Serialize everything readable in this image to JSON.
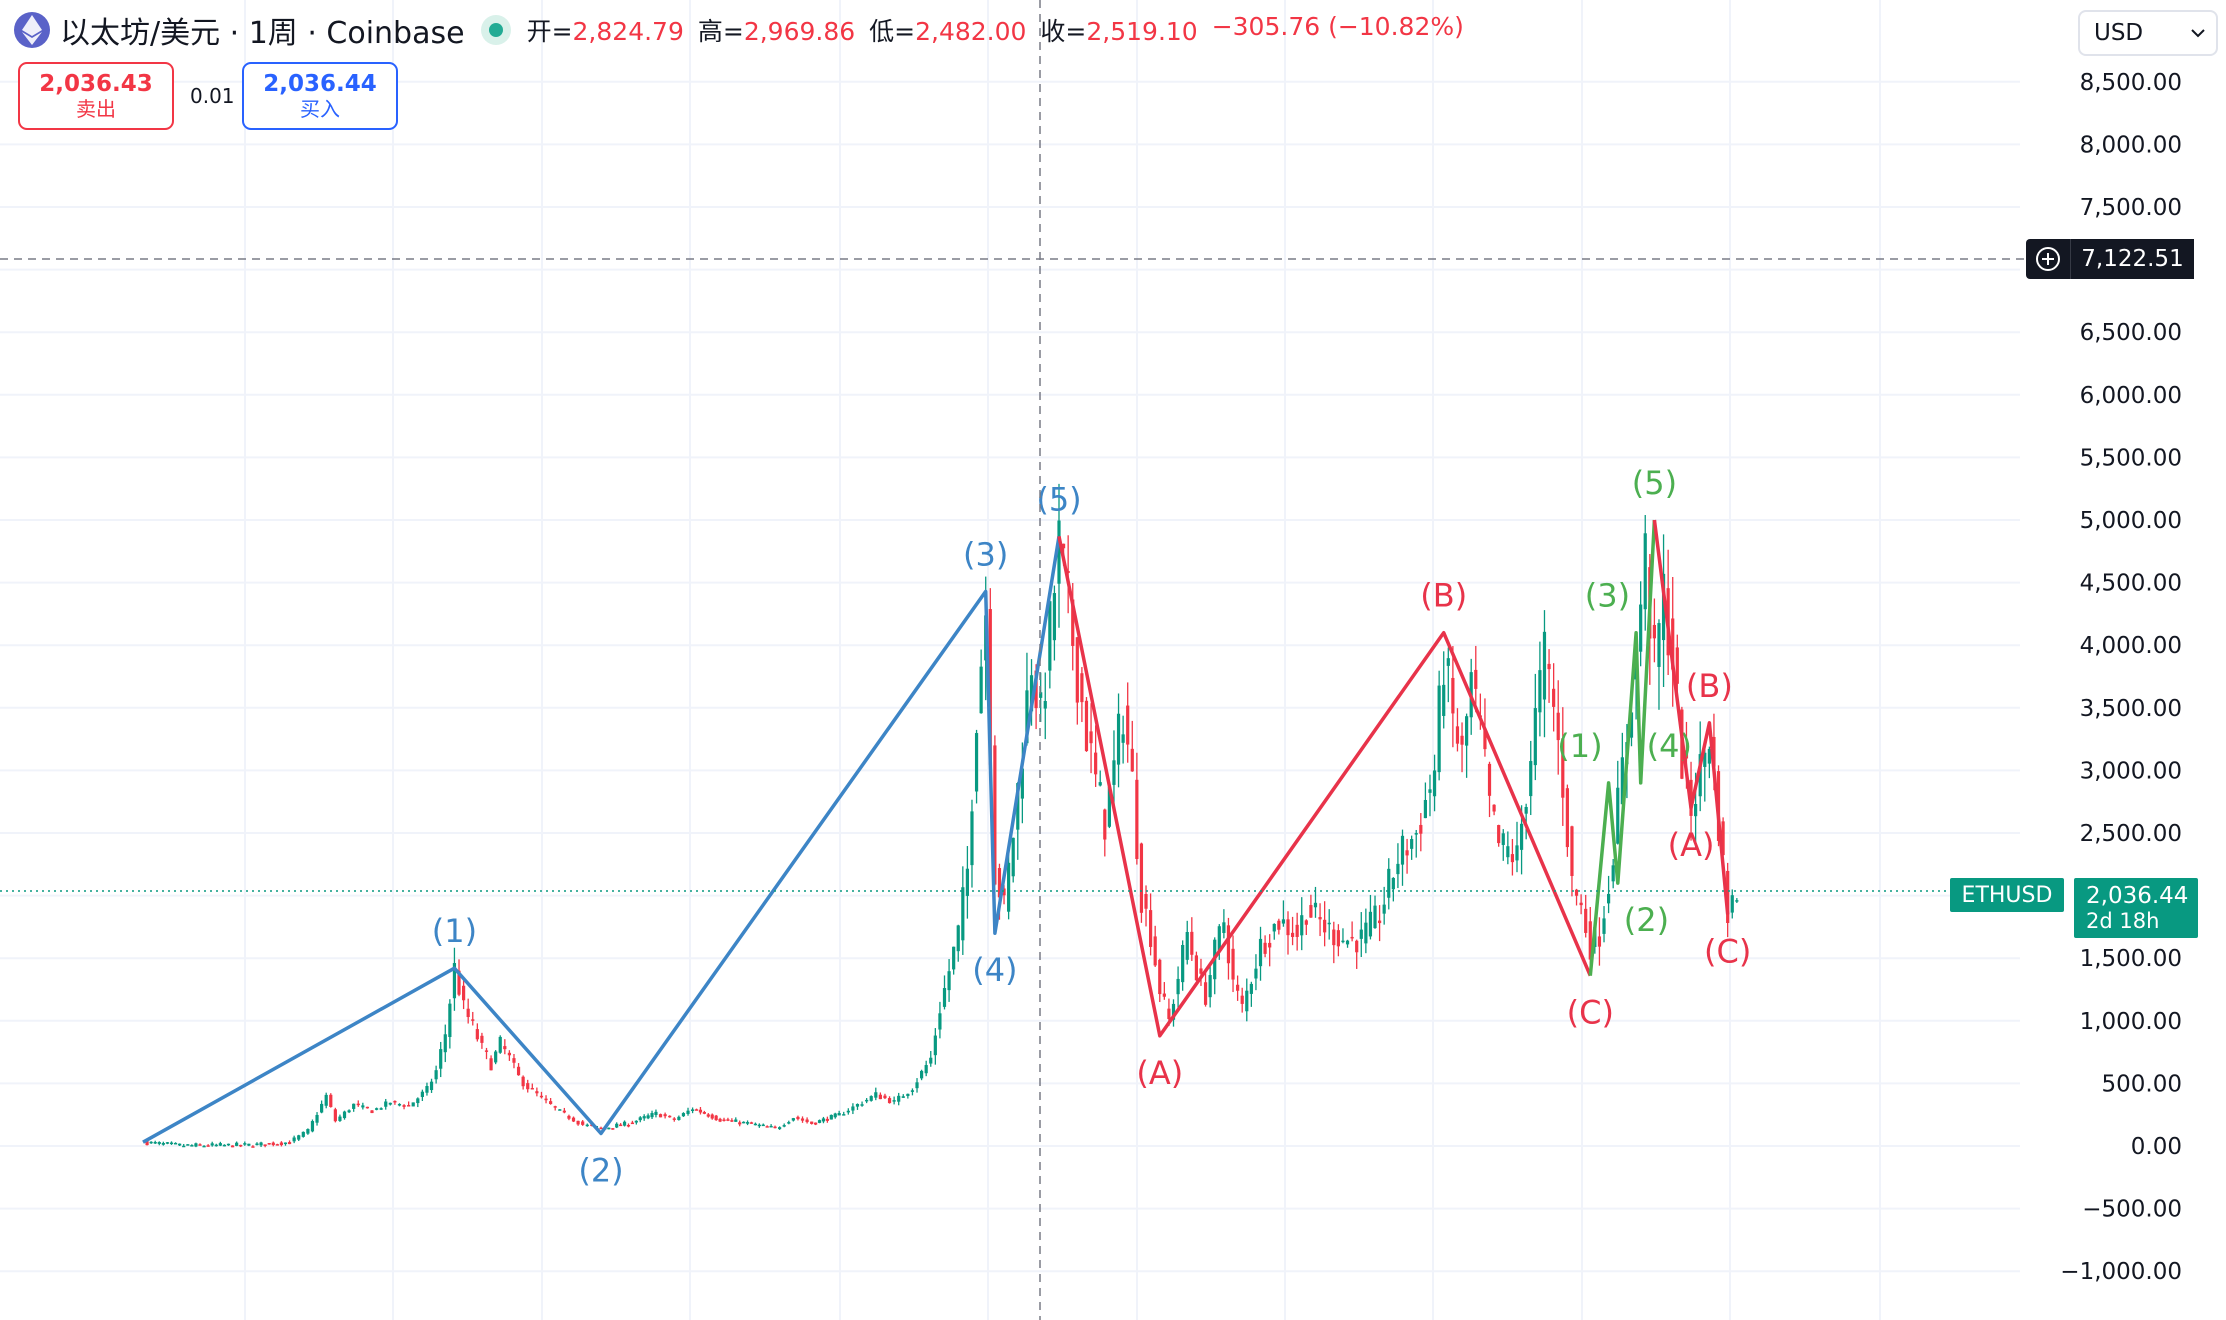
{
  "header": {
    "title": "以太坊/美元 · 1周 · Coinbase",
    "ohlc": {
      "open_label": "开=",
      "open": "2,824.79",
      "high_label": "高=",
      "high": "2,969.86",
      "low_label": "低=",
      "low": "2,482.00",
      "close_label": "收=",
      "close": "2,519.10",
      "change": "−305.76 (−10.82%)"
    }
  },
  "trade": {
    "sell_price": "2,036.43",
    "sell_label": "卖出",
    "spread": "0.01",
    "buy_price": "2,036.44",
    "buy_label": "买入"
  },
  "currency": {
    "selected": "USD"
  },
  "crosshair": {
    "price_label": "7,122.51"
  },
  "last_price": {
    "symbol": "ETHUSD",
    "price": "2,036.44",
    "countdown": "2d 18h"
  },
  "colors": {
    "up": "#089981",
    "down": "#f23645",
    "wave_blue": "#3d85c6",
    "wave_red": "#e8334a",
    "wave_green": "#4caf50",
    "accent": "#2962ff"
  },
  "chart_data": {
    "type": "candlestick",
    "symbol": "ETHUSD",
    "timeframe": "1周",
    "exchange": "Coinbase",
    "ylim": [
      -1100,
      8700
    ],
    "y_ticks": [
      "8,500.00",
      "8,000.00",
      "7,500.00",
      "6,500.00",
      "6,000.00",
      "5,500.00",
      "5,000.00",
      "4,500.00",
      "4,000.00",
      "3,500.00",
      "3,000.00",
      "2,500.00",
      "1,500.00",
      "1,000.00",
      "500.00",
      "0.00",
      "−500.00",
      "−1,000.00"
    ],
    "y_tick_values": [
      8500,
      8000,
      7500,
      6500,
      6000,
      5500,
      5000,
      4500,
      4000,
      3500,
      3000,
      2500,
      1500,
      1000,
      500,
      0,
      -500,
      -1000
    ],
    "grid": true,
    "price_series": [
      [
        0,
        30
      ],
      [
        4,
        5
      ],
      [
        8,
        5
      ],
      [
        12,
        8
      ],
      [
        16,
        30
      ],
      [
        18,
        120
      ],
      [
        20,
        400
      ],
      [
        21,
        200
      ],
      [
        23,
        330
      ],
      [
        25,
        280
      ],
      [
        27,
        350
      ],
      [
        29,
        320
      ],
      [
        31,
        450
      ],
      [
        32,
        600
      ],
      [
        33,
        900
      ],
      [
        34,
        1420
      ],
      [
        35,
        1100
      ],
      [
        36,
        950
      ],
      [
        37,
        780
      ],
      [
        38,
        650
      ],
      [
        39,
        820
      ],
      [
        40,
        700
      ],
      [
        41,
        550
      ],
      [
        42,
        470
      ],
      [
        44,
        350
      ],
      [
        46,
        250
      ],
      [
        48,
        170
      ],
      [
        50,
        140
      ],
      [
        53,
        180
      ],
      [
        56,
        260
      ],
      [
        58,
        210
      ],
      [
        60,
        300
      ],
      [
        63,
        210
      ],
      [
        66,
        180
      ],
      [
        69,
        140
      ],
      [
        71,
        230
      ],
      [
        73,
        180
      ],
      [
        76,
        250
      ],
      [
        78,
        330
      ],
      [
        80,
        410
      ],
      [
        82,
        350
      ],
      [
        84,
        470
      ],
      [
        86,
        700
      ],
      [
        87,
        1100
      ],
      [
        88,
        1400
      ],
      [
        89,
        1700
      ],
      [
        90,
        2200
      ],
      [
        91,
        3500
      ],
      [
        92,
        4300
      ],
      [
        93,
        2200
      ],
      [
        94,
        1900
      ],
      [
        95,
        2500
      ],
      [
        96,
        3200
      ],
      [
        97,
        3900
      ],
      [
        98,
        3400
      ],
      [
        99,
        4100
      ],
      [
        100,
        4800
      ],
      [
        101,
        4300
      ],
      [
        102,
        3800
      ],
      [
        103,
        3300
      ],
      [
        104,
        2900
      ],
      [
        105,
        2600
      ],
      [
        106,
        3000
      ],
      [
        107,
        3500
      ],
      [
        108,
        2900
      ],
      [
        109,
        2000
      ],
      [
        110,
        1700
      ],
      [
        111,
        1250
      ],
      [
        112,
        1000
      ],
      [
        113,
        1350
      ],
      [
        114,
        1700
      ],
      [
        115,
        1400
      ],
      [
        116,
        1200
      ],
      [
        117,
        1550
      ],
      [
        118,
        1800
      ],
      [
        119,
        1300
      ],
      [
        120,
        1100
      ],
      [
        122,
        1600
      ],
      [
        124,
        1800
      ],
      [
        126,
        1700
      ],
      [
        127,
        1900
      ],
      [
        129,
        1750
      ],
      [
        131,
        1650
      ],
      [
        133,
        1650
      ],
      [
        135,
        1850
      ],
      [
        137,
        2300
      ],
      [
        139,
        2500
      ],
      [
        141,
        3000
      ],
      [
        142,
        3900
      ],
      [
        143,
        3400
      ],
      [
        144,
        3100
      ],
      [
        145,
        3700
      ],
      [
        146,
        3300
      ],
      [
        147,
        2700
      ],
      [
        148,
        2400
      ],
      [
        150,
        2300
      ],
      [
        152,
        3400
      ],
      [
        153,
        3900
      ],
      [
        154,
        3500
      ],
      [
        155,
        2900
      ],
      [
        156,
        2100
      ],
      [
        157,
        1900
      ],
      [
        158,
        1600
      ],
      [
        159,
        1700
      ],
      [
        160,
        2100
      ],
      [
        161,
        2700
      ],
      [
        162,
        3300
      ],
      [
        163,
        4000
      ],
      [
        164,
        4700
      ],
      [
        165,
        3800
      ],
      [
        166,
        4400
      ],
      [
        167,
        3900
      ],
      [
        168,
        3100
      ],
      [
        169,
        2700
      ],
      [
        170,
        3000
      ],
      [
        171,
        3300
      ],
      [
        172,
        2600
      ],
      [
        173,
        1850
      ],
      [
        174,
        2036
      ]
    ],
    "elliott_waves": [
      {
        "name": "impulse",
        "color": "#3d85c6",
        "points": [
          {
            "label": "",
            "x": 0,
            "y": 30,
            "pos": "below"
          },
          {
            "label": "(1)",
            "x": 34,
            "y": 1420,
            "pos": "above"
          },
          {
            "label": "(2)",
            "x": 50,
            "y": 100,
            "pos": "below"
          },
          {
            "label": "(3)",
            "x": 92,
            "y": 4430,
            "pos": "above"
          },
          {
            "label": "(4)",
            "x": 93,
            "y": 1700,
            "pos": "below"
          },
          {
            "label": "(5)",
            "x": 100,
            "y": 4870,
            "pos": "above"
          }
        ]
      },
      {
        "name": "correction",
        "color": "#e8334a",
        "points": [
          {
            "label": "",
            "x": 100,
            "y": 4870,
            "pos": "above"
          },
          {
            "label": "(A)",
            "x": 111,
            "y": 880,
            "pos": "below"
          },
          {
            "label": "(B)",
            "x": 142,
            "y": 4100,
            "pos": "above"
          },
          {
            "label": "(C)",
            "x": 158,
            "y": 1360,
            "pos": "below"
          }
        ]
      },
      {
        "name": "impulse-2",
        "color": "#4caf50",
        "points": [
          {
            "label": "",
            "x": 158,
            "y": 1360,
            "pos": "below"
          },
          {
            "label": "(1)",
            "x": 160,
            "y": 2900,
            "pos": "above-left"
          },
          {
            "label": "(2)",
            "x": 161,
            "y": 2100,
            "pos": "below-right"
          },
          {
            "label": "(3)",
            "x": 163,
            "y": 4100,
            "pos": "above-left"
          },
          {
            "label": "(4)",
            "x": 163.5,
            "y": 2900,
            "pos": "above-right"
          },
          {
            "label": "(5)",
            "x": 165,
            "y": 5000,
            "pos": "above"
          }
        ]
      },
      {
        "name": "correction-2",
        "color": "#e8334a",
        "points": [
          {
            "label": "",
            "x": 165,
            "y": 5000,
            "pos": "above"
          },
          {
            "label": "(A)",
            "x": 169,
            "y": 2700,
            "pos": "below"
          },
          {
            "label": "(B)",
            "x": 171,
            "y": 3380,
            "pos": "above"
          },
          {
            "label": "(C)",
            "x": 173,
            "y": 1850,
            "pos": "below"
          }
        ]
      }
    ]
  }
}
